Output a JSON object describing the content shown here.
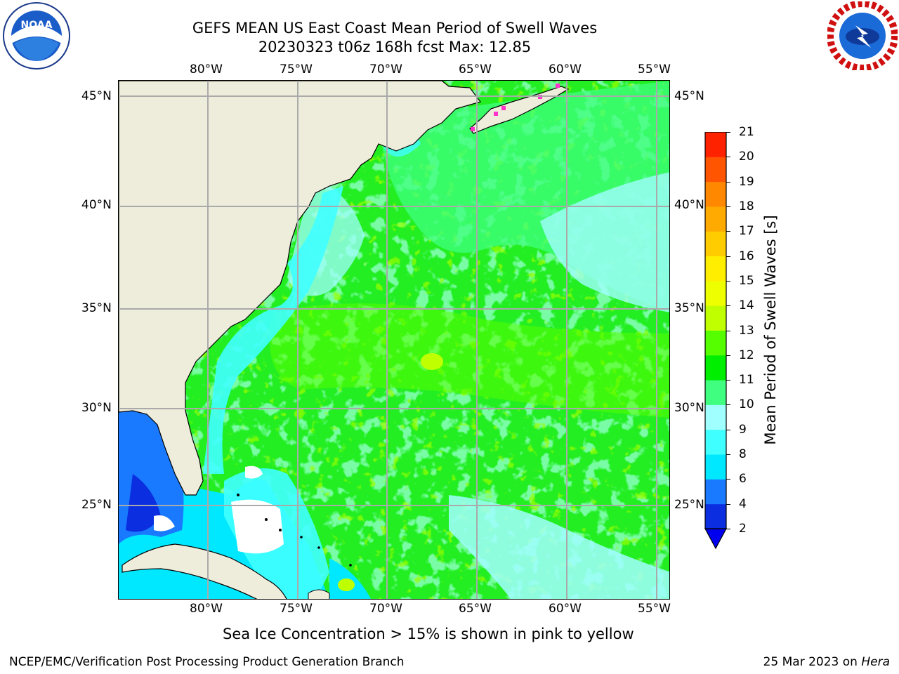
{
  "title": {
    "line1": "GEFS MEAN US East Coast Mean Period of Swell Waves",
    "line2": "20230323 t06z 168h fcst   Max: 12.85"
  },
  "map": {
    "lon_labels": [
      "80°W",
      "75°W",
      "70°W",
      "65°W",
      "60°W",
      "55°W"
    ],
    "lat_labels": [
      "45°N",
      "40°N",
      "35°N",
      "30°N",
      "25°N"
    ],
    "colors": {
      "land": "#eeeddc",
      "ocean_main": "#22ee22",
      "grid": "#aaaaaa"
    }
  },
  "colorbar": {
    "label": "Mean Period of Swell Waves [s]",
    "ticks": [
      "2",
      "4",
      "6",
      "8",
      "9",
      "10",
      "11",
      "12",
      "13",
      "14",
      "15",
      "16",
      "17",
      "18",
      "19",
      "20",
      "21"
    ],
    "colors": [
      "#0a2ee0",
      "#1a7aff",
      "#00e8ff",
      "#40ffff",
      "#a0ffff",
      "#40ff80",
      "#00ee00",
      "#55ff00",
      "#c0ff00",
      "#eeff00",
      "#ffee00",
      "#ffcc00",
      "#ffaa00",
      "#ff8800",
      "#ff5500",
      "#ff2200"
    ],
    "under_color": "#0000ee"
  },
  "caption": "Sea Ice Concentration > 15% is shown in pink to yellow",
  "footer": {
    "left": "NCEP/EMC/Verification Post Processing Product Generation Branch",
    "date": "25 Mar 2023 on ",
    "machine": "Hera"
  },
  "logos": {
    "noaa": {
      "text": "NOAA"
    },
    "nws": {
      "icon": "nws-logo"
    }
  }
}
